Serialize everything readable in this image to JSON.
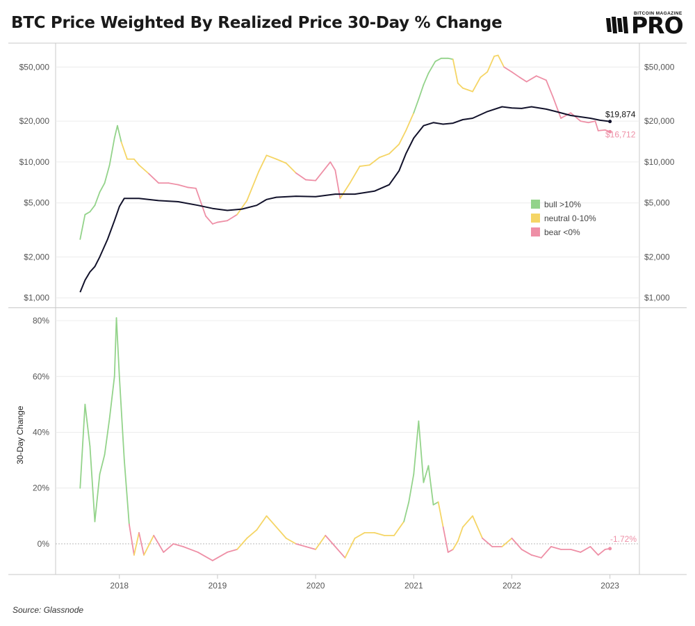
{
  "header": {
    "title": "BTC Price Weighted By Realized Price 30-Day % Change",
    "logo_top": "BITCOIN MAGAZINE",
    "logo_main": "PRO"
  },
  "footer": {
    "source": "Source: Glassnode"
  },
  "colors": {
    "bull": "#93d38a",
    "neutral": "#f5d565",
    "bear": "#ee8fa6",
    "realized": "#11112a",
    "grid": "#ececec",
    "frame": "#c8c8c8"
  },
  "chart_data": [
    {
      "type": "line",
      "scale": "log",
      "ylim": [
        850,
        75000
      ],
      "xlim": [
        2017.35,
        2023.3
      ],
      "y_ticks": [
        {
          "v": 1000,
          "label": "$1,000"
        },
        {
          "v": 2000,
          "label": "$2,000"
        },
        {
          "v": 5000,
          "label": "$5,000"
        },
        {
          "v": 10000,
          "label": "$10,000"
        },
        {
          "v": 20000,
          "label": "$20,000"
        },
        {
          "v": 50000,
          "label": "$50,000"
        }
      ],
      "legend": {
        "position": "right",
        "items": [
          {
            "key": "bull",
            "label": "bull >10%"
          },
          {
            "key": "neutral",
            "label": "neutral 0-10%"
          },
          {
            "key": "bear",
            "label": "bear <0%"
          }
        ]
      },
      "annotations": [
        {
          "series": "realized",
          "label": "$19,874",
          "x": 2023.0,
          "y": 19874
        },
        {
          "series": "price",
          "label": "$16,712",
          "x": 2023.0,
          "y": 16712
        }
      ],
      "series": [
        {
          "name": "price",
          "x": [
            2017.6,
            2017.65,
            2017.7,
            2017.75,
            2017.8,
            2017.85,
            2017.9,
            2017.95,
            2017.98,
            2018.02,
            2018.08,
            2018.15,
            2018.2,
            2018.3,
            2018.4,
            2018.5,
            2018.6,
            2018.7,
            2018.78,
            2018.88,
            2018.95,
            2019.0,
            2019.1,
            2019.2,
            2019.3,
            2019.42,
            2019.5,
            2019.6,
            2019.7,
            2019.8,
            2019.9,
            2020.0,
            2020.1,
            2020.15,
            2020.2,
            2020.25,
            2020.35,
            2020.45,
            2020.55,
            2020.65,
            2020.75,
            2020.85,
            2020.92,
            2021.0,
            2021.05,
            2021.1,
            2021.15,
            2021.22,
            2021.28,
            2021.35,
            2021.4,
            2021.45,
            2021.5,
            2021.55,
            2021.6,
            2021.68,
            2021.75,
            2021.82,
            2021.86,
            2021.92,
            2022.0,
            2022.08,
            2022.15,
            2022.25,
            2022.35,
            2022.42,
            2022.5,
            2022.6,
            2022.7,
            2022.78,
            2022.85,
            2022.88,
            2022.95,
            2023.0
          ],
          "values": [
            2700,
            4100,
            4300,
            4800,
            6000,
            7000,
            9500,
            15000,
            18500,
            14000,
            10500,
            10500,
            9500,
            8200,
            7000,
            7000,
            6800,
            6500,
            6400,
            4000,
            3500,
            3600,
            3700,
            4100,
            5200,
            8500,
            11200,
            10500,
            9800,
            8300,
            7400,
            7300,
            9000,
            10000,
            8700,
            5400,
            7000,
            9300,
            9500,
            10800,
            11500,
            13500,
            17000,
            23000,
            29000,
            37000,
            45000,
            55000,
            58000,
            58000,
            57000,
            38000,
            35000,
            34000,
            33000,
            42000,
            46000,
            60000,
            61000,
            50000,
            46000,
            42000,
            39000,
            43000,
            40000,
            30000,
            21000,
            23000,
            20000,
            19500,
            20000,
            17000,
            17200,
            16712
          ],
          "colors": [
            "bull",
            "bull",
            "bull",
            "bull",
            "bull",
            "bull",
            "bull",
            "bull",
            "bull",
            "bull",
            "neutral",
            "neutral",
            "neutral",
            "neutral",
            "bear",
            "bear",
            "bear",
            "bear",
            "bear",
            "bear",
            "bear",
            "bear",
            "bear",
            "bear",
            "neutral",
            "neutral",
            "neutral",
            "neutral",
            "neutral",
            "neutral",
            "bear",
            "bear",
            "bear",
            "bear",
            "bear",
            "bear",
            "neutral",
            "neutral",
            "neutral",
            "neutral",
            "neutral",
            "neutral",
            "neutral",
            "neutral",
            "bull",
            "bull",
            "bull",
            "bull",
            "bull",
            "bull",
            "bull",
            "neutral",
            "neutral",
            "neutral",
            "neutral",
            "neutral",
            "neutral",
            "neutral",
            "neutral",
            "neutral",
            "bear",
            "bear",
            "bear",
            "bear",
            "bear",
            "bear",
            "bear",
            "bear",
            "bear",
            "bear",
            "bear",
            "bear",
            "bear",
            "bear"
          ]
        },
        {
          "name": "realized",
          "x": [
            2017.6,
            2017.65,
            2017.7,
            2017.75,
            2017.8,
            2017.88,
            2017.95,
            2018.0,
            2018.05,
            2018.2,
            2018.4,
            2018.6,
            2018.8,
            2018.95,
            2019.1,
            2019.25,
            2019.4,
            2019.5,
            2019.6,
            2019.8,
            2020.0,
            2020.2,
            2020.4,
            2020.6,
            2020.75,
            2020.85,
            2020.92,
            2021.0,
            2021.1,
            2021.2,
            2021.3,
            2021.4,
            2021.5,
            2021.6,
            2021.75,
            2021.9,
            2022.0,
            2022.1,
            2022.2,
            2022.35,
            2022.45,
            2022.6,
            2022.8,
            2022.9,
            2023.0
          ],
          "values": [
            1100,
            1350,
            1550,
            1700,
            2000,
            2700,
            3700,
            4700,
            5400,
            5400,
            5200,
            5100,
            4800,
            4550,
            4400,
            4500,
            4800,
            5300,
            5500,
            5600,
            5550,
            5800,
            5800,
            6100,
            6800,
            8600,
            11500,
            15000,
            18500,
            19500,
            19000,
            19300,
            20500,
            21000,
            23500,
            25500,
            25000,
            24800,
            25500,
            24500,
            23500,
            22000,
            21000,
            20300,
            19874
          ]
        }
      ]
    },
    {
      "type": "line",
      "ylabel": "30-Day Change",
      "ylim": [
        -0.11,
        0.84
      ],
      "xlim": [
        2017.35,
        2023.3
      ],
      "y_ticks": [
        {
          "v": 0,
          "label": "0%"
        },
        {
          "v": 0.2,
          "label": "20%"
        },
        {
          "v": 0.4,
          "label": "40%"
        },
        {
          "v": 0.6,
          "label": "60%"
        },
        {
          "v": 0.8,
          "label": "80%"
        }
      ],
      "x_ticks": [
        {
          "v": 2018,
          "label": "2018"
        },
        {
          "v": 2019,
          "label": "2019"
        },
        {
          "v": 2020,
          "label": "2020"
        },
        {
          "v": 2021,
          "label": "2021"
        },
        {
          "v": 2022,
          "label": "2022"
        },
        {
          "v": 2023,
          "label": "2023"
        }
      ],
      "annotations": [
        {
          "label": "-1.72%",
          "x": 2023.0,
          "y": -0.0172
        }
      ],
      "series": [
        {
          "name": "30-day change",
          "x": [
            2017.6,
            2017.65,
            2017.7,
            2017.75,
            2017.8,
            2017.85,
            2017.9,
            2017.95,
            2017.97,
            2018.0,
            2018.05,
            2018.1,
            2018.15,
            2018.2,
            2018.25,
            2018.35,
            2018.45,
            2018.55,
            2018.65,
            2018.8,
            2018.95,
            2019.0,
            2019.1,
            2019.2,
            2019.3,
            2019.4,
            2019.5,
            2019.6,
            2019.7,
            2019.8,
            2019.9,
            2020.0,
            2020.1,
            2020.2,
            2020.3,
            2020.4,
            2020.5,
            2020.6,
            2020.7,
            2020.8,
            2020.9,
            2020.95,
            2021.0,
            2021.05,
            2021.1,
            2021.15,
            2021.2,
            2021.25,
            2021.3,
            2021.35,
            2021.4,
            2021.45,
            2021.5,
            2021.6,
            2021.7,
            2021.8,
            2021.9,
            2022.0,
            2022.1,
            2022.2,
            2022.3,
            2022.4,
            2022.5,
            2022.6,
            2022.7,
            2022.8,
            2022.88,
            2022.95,
            2023.0
          ],
          "values": [
            0.2,
            0.5,
            0.35,
            0.08,
            0.25,
            0.32,
            0.45,
            0.6,
            0.81,
            0.6,
            0.3,
            0.07,
            -0.04,
            0.04,
            -0.04,
            0.03,
            -0.03,
            -0.0,
            -0.01,
            -0.03,
            -0.06,
            -0.05,
            -0.03,
            -0.02,
            0.02,
            0.05,
            0.1,
            0.06,
            0.02,
            0.0,
            -0.01,
            -0.02,
            0.03,
            -0.01,
            -0.05,
            0.02,
            0.04,
            0.04,
            0.03,
            0.03,
            0.08,
            0.15,
            0.25,
            0.44,
            0.22,
            0.28,
            0.14,
            0.15,
            0.06,
            -0.03,
            -0.02,
            0.01,
            0.06,
            0.1,
            0.02,
            -0.01,
            -0.01,
            0.02,
            -0.02,
            -0.04,
            -0.05,
            -0.01,
            -0.02,
            -0.02,
            -0.03,
            -0.01,
            -0.04,
            -0.02,
            -0.0172
          ],
          "colors": [
            "bull",
            "bull",
            "bull",
            "bull",
            "bull",
            "bull",
            "bull",
            "bull",
            "bull",
            "bull",
            "bull",
            "bull",
            "bear",
            "neutral",
            "bear",
            "neutral",
            "bear",
            "bear",
            "bear",
            "bear",
            "bear",
            "bear",
            "bear",
            "bear",
            "neutral",
            "neutral",
            "neutral",
            "neutral",
            "neutral",
            "neutral",
            "bear",
            "bear",
            "neutral",
            "bear",
            "bear",
            "neutral",
            "neutral",
            "neutral",
            "neutral",
            "neutral",
            "neutral",
            "bull",
            "bull",
            "bull",
            "bull",
            "bull",
            "bull",
            "bull",
            "neutral",
            "bear",
            "bear",
            "neutral",
            "neutral",
            "neutral",
            "neutral",
            "bear",
            "bear",
            "neutral",
            "bear",
            "bear",
            "bear",
            "bear",
            "bear",
            "bear",
            "bear",
            "bear",
            "bear",
            "bear",
            "bear"
          ]
        }
      ]
    }
  ]
}
